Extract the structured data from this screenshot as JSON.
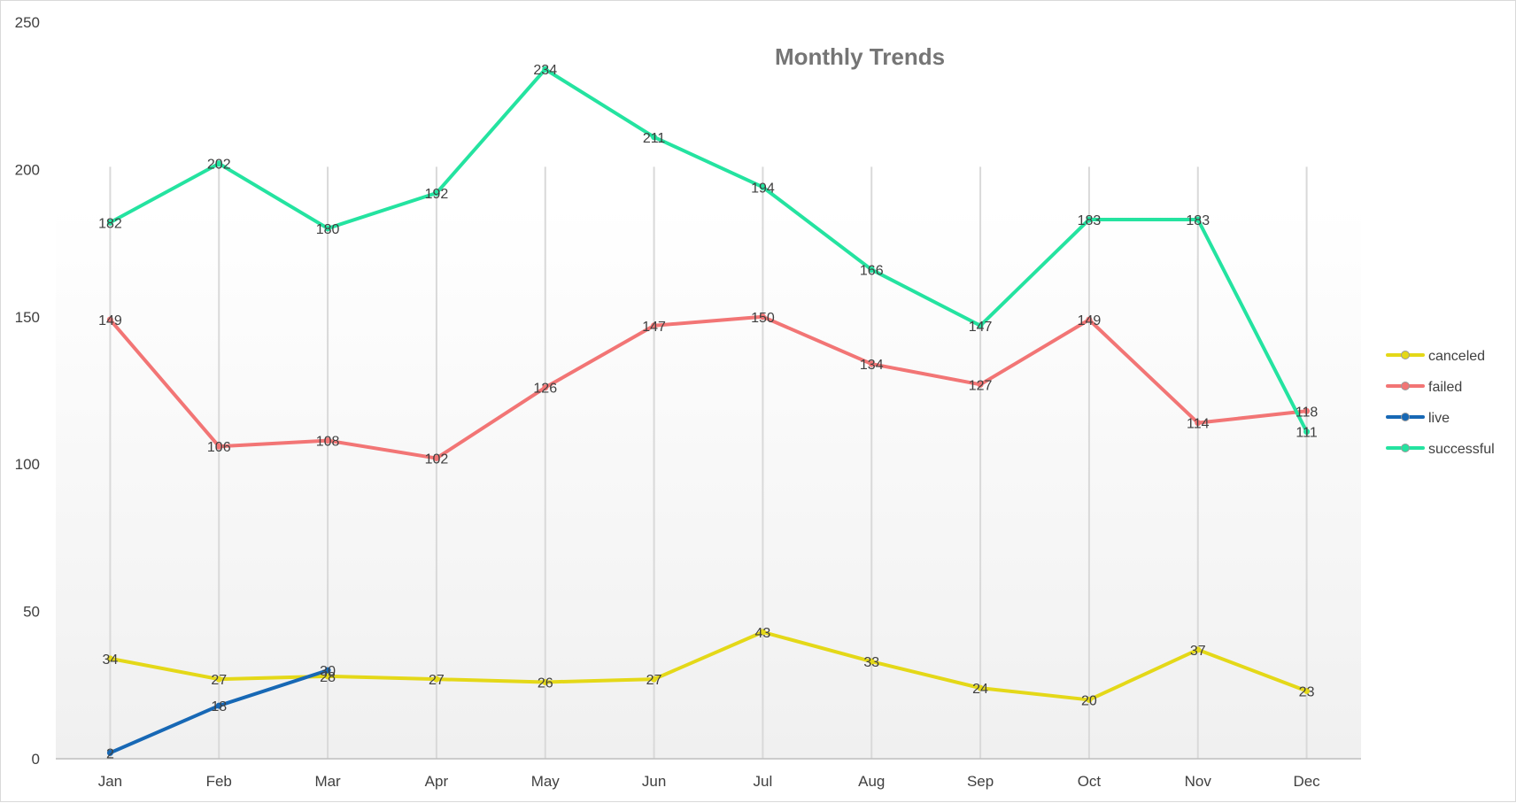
{
  "chart_data": {
    "type": "line",
    "title": "Monthly Trends",
    "categories": [
      "Jan",
      "Feb",
      "Mar",
      "Apr",
      "May",
      "Jun",
      "Jul",
      "Aug",
      "Sep",
      "Oct",
      "Nov",
      "Dec"
    ],
    "ylim": [
      0,
      250
    ],
    "yticks": [
      0,
      50,
      100,
      150,
      200,
      250
    ],
    "grid": "vertical",
    "legend": "right",
    "series": [
      {
        "name": "canceled",
        "color": "#e4d818",
        "values": [
          34,
          27,
          28,
          27,
          26,
          27,
          43,
          33,
          24,
          20,
          37,
          23
        ]
      },
      {
        "name": "failed",
        "color": "#f27575",
        "values": [
          149,
          106,
          108,
          102,
          126,
          147,
          150,
          134,
          127,
          149,
          114,
          118
        ]
      },
      {
        "name": "live",
        "color": "#1768b5",
        "values": [
          2,
          18,
          30,
          null,
          null,
          null,
          null,
          null,
          null,
          null,
          null,
          null
        ]
      },
      {
        "name": "successful",
        "color": "#24e3a0",
        "values": [
          182,
          202,
          180,
          192,
          234,
          211,
          194,
          166,
          147,
          183,
          183,
          111
        ]
      }
    ]
  }
}
